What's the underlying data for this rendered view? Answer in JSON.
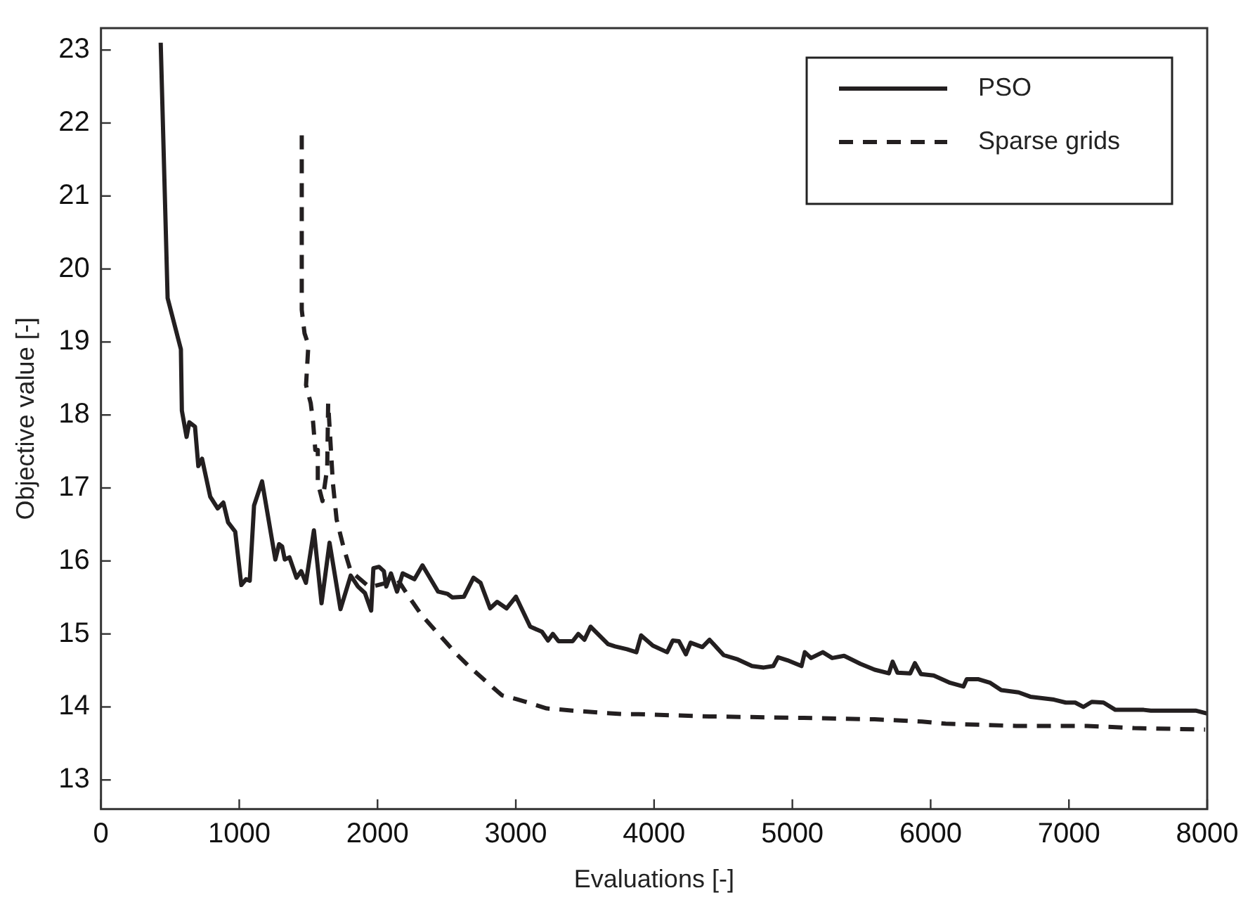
{
  "chart_data": {
    "type": "line",
    "xlabel": "Evaluations [-]",
    "ylabel": "Objective value [-]",
    "xlim": [
      0,
      8000
    ],
    "ylim": [
      12.6,
      23.3
    ],
    "xticks": [
      0,
      1000,
      2000,
      3000,
      4000,
      5000,
      6000,
      7000,
      8000
    ],
    "yticks": [
      13,
      14,
      15,
      16,
      17,
      18,
      19,
      20,
      21,
      22,
      23
    ],
    "grid": false,
    "legend": "top right",
    "series": [
      {
        "name": "PSO",
        "color": "#231f20",
        "line_style": "solid",
        "x": [
          432,
          482,
          578,
          585,
          619,
          639,
          680,
          704,
          731,
          790,
          844,
          885,
          919,
          971,
          1015,
          1049,
          1076,
          1107,
          1165,
          1209,
          1261,
          1288,
          1310,
          1329,
          1363,
          1414,
          1448,
          1482,
          1540,
          1595,
          1653,
          1732,
          1806,
          1858,
          1909,
          1954,
          1970,
          2011,
          2046,
          2063,
          2097,
          2141,
          2182,
          2267,
          2325,
          2438,
          2506,
          2540,
          2625,
          2694,
          2745,
          2814,
          2865,
          2933,
          3001,
          3104,
          3189,
          3233,
          3268,
          3309,
          3411,
          3452,
          3496,
          3541,
          3667,
          3718,
          3804,
          3872,
          3906,
          3991,
          4094,
          4135,
          4180,
          4230,
          4264,
          4349,
          4401,
          4503,
          4606,
          4708,
          4793,
          4862,
          4896,
          4964,
          5066,
          5090,
          5135,
          5220,
          5288,
          5374,
          5493,
          5595,
          5698,
          5725,
          5760,
          5852,
          5886,
          5930,
          6022,
          6141,
          6237,
          6261,
          6346,
          6431,
          6510,
          6636,
          6721,
          6892,
          6977,
          7045,
          7104,
          7165,
          7250,
          7336,
          7541,
          7592,
          7916,
          8000
        ],
        "values": [
          23.1,
          19.6,
          18.9,
          18.06,
          17.7,
          17.9,
          17.84,
          17.3,
          17.4,
          16.88,
          16.72,
          16.8,
          16.53,
          16.4,
          15.67,
          15.75,
          15.73,
          16.76,
          17.09,
          16.6,
          16.02,
          16.23,
          16.2,
          16.02,
          16.05,
          15.77,
          15.86,
          15.7,
          16.42,
          15.42,
          16.25,
          15.34,
          15.8,
          15.65,
          15.56,
          15.32,
          15.9,
          15.92,
          15.86,
          15.65,
          15.83,
          15.58,
          15.83,
          15.75,
          15.94,
          15.58,
          15.55,
          15.5,
          15.51,
          15.77,
          15.7,
          15.35,
          15.44,
          15.35,
          15.51,
          15.1,
          15.03,
          14.91,
          15.0,
          14.9,
          14.9,
          15.0,
          14.92,
          15.1,
          14.86,
          14.83,
          14.79,
          14.75,
          14.98,
          14.84,
          14.75,
          14.91,
          14.9,
          14.72,
          14.88,
          14.82,
          14.92,
          14.71,
          14.65,
          14.56,
          14.54,
          14.56,
          14.68,
          14.64,
          14.56,
          14.75,
          14.67,
          14.75,
          14.67,
          14.7,
          14.59,
          14.51,
          14.46,
          14.62,
          14.47,
          14.46,
          14.6,
          14.45,
          14.43,
          14.33,
          14.28,
          14.38,
          14.38,
          14.33,
          14.23,
          14.2,
          14.14,
          14.1,
          14.06,
          14.06,
          14.0,
          14.07,
          14.06,
          13.96,
          13.96,
          13.95,
          13.95,
          13.91
        ]
      },
      {
        "name": "Sparse grids",
        "color": "#231f20",
        "line_style": "dashed",
        "x": [
          1452,
          1452,
          1472,
          1500,
          1483,
          1517,
          1534,
          1550,
          1568,
          1568,
          1602,
          1636,
          1643,
          1677,
          1704,
          1755,
          1806,
          1943,
          2148,
          2216,
          2318,
          2455,
          2574,
          2660,
          2797,
          2899,
          3001,
          3104,
          3223,
          3411,
          3616,
          3803,
          3889,
          4401,
          5083,
          5595,
          5937,
          6108,
          6619,
          7131,
          7472,
          7985
        ],
        "values": [
          21.83,
          19.44,
          19.12,
          18.96,
          18.41,
          18.16,
          17.9,
          17.52,
          17.52,
          17.07,
          16.82,
          17.27,
          18.16,
          17.07,
          16.57,
          16.18,
          15.86,
          15.64,
          15.74,
          15.54,
          15.26,
          14.97,
          14.72,
          14.56,
          14.33,
          14.16,
          14.11,
          14.05,
          13.98,
          13.95,
          13.92,
          13.9,
          13.9,
          13.87,
          13.85,
          13.83,
          13.8,
          13.77,
          13.74,
          13.74,
          13.71,
          13.69
        ]
      }
    ]
  }
}
